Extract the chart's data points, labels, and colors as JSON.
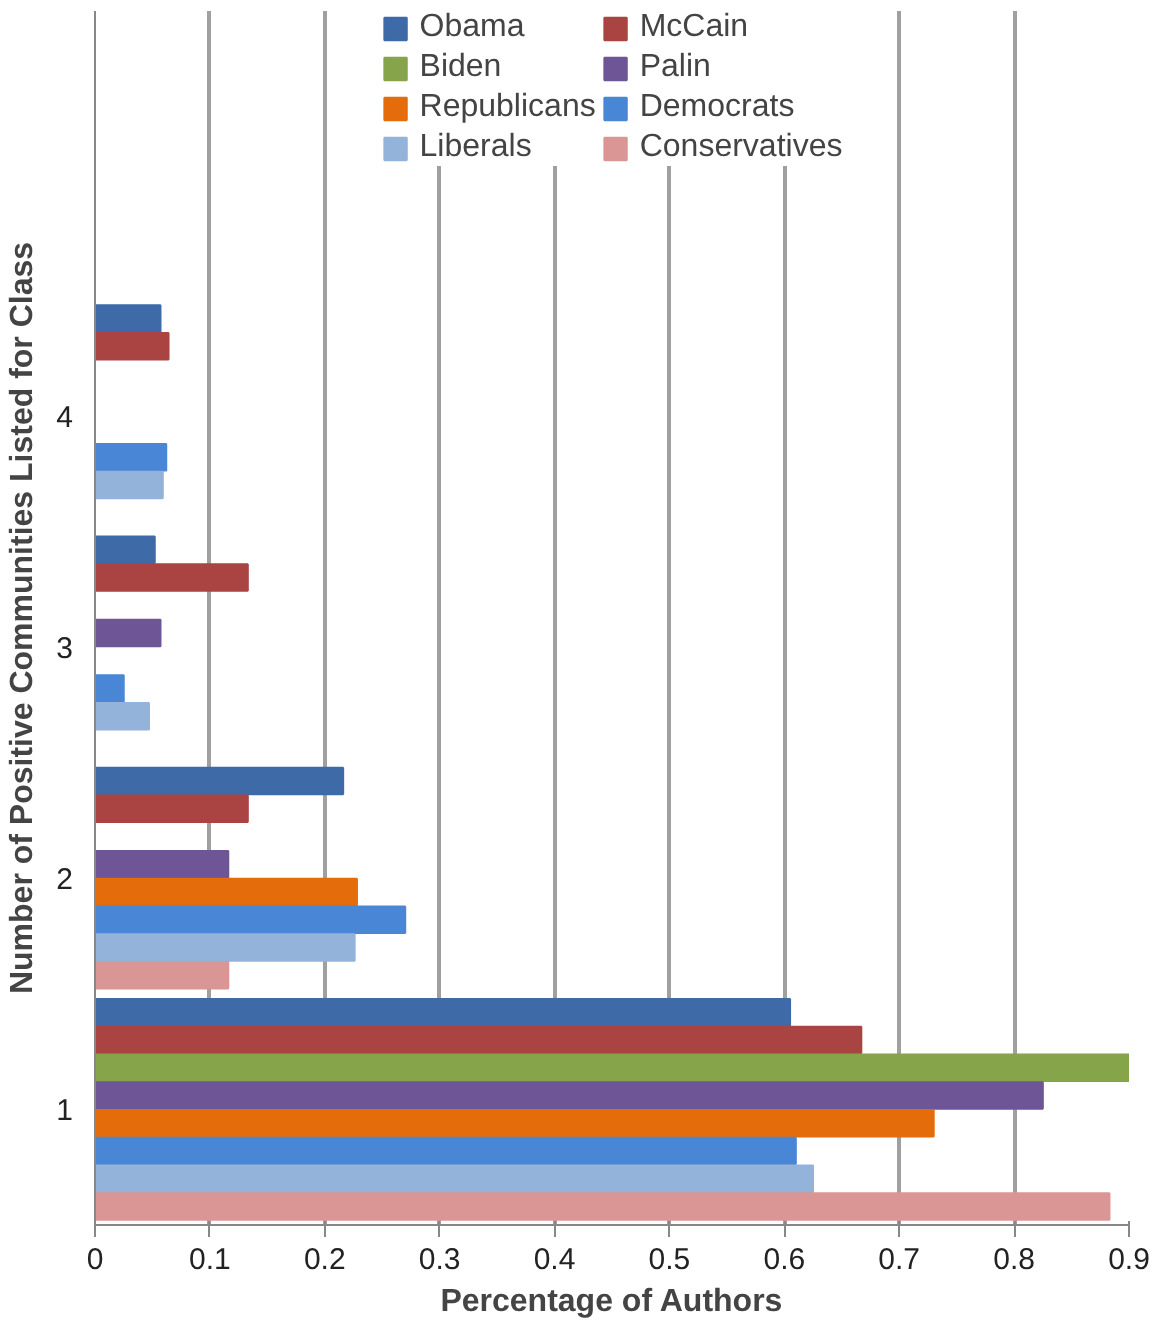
{
  "chart_data": {
    "type": "bar",
    "orientation": "horizontal",
    "xlabel": "Percentage of Authors",
    "ylabel": "Number of Positive Communities Listed for Class",
    "categories": [
      "4",
      "3",
      "2",
      "1"
    ],
    "series": [
      {
        "name": "Obama",
        "color": "#3f6aa8",
        "values": [
          0.057,
          0.052,
          0.216,
          0.605
        ]
      },
      {
        "name": "McCain",
        "color": "#a94442",
        "values": [
          0.064,
          0.133,
          0.133,
          0.667
        ]
      },
      {
        "name": "Biden",
        "color": "#86a44a",
        "values": [
          null,
          null,
          null,
          0.9
        ]
      },
      {
        "name": "Palin",
        "color": "#6e5596",
        "values": [
          null,
          0.057,
          0.116,
          0.825
        ]
      },
      {
        "name": "Republicans",
        "color": "#e46c0a",
        "values": [
          null,
          null,
          0.228,
          0.73
        ]
      },
      {
        "name": "Democrats",
        "color": "#4a86d6",
        "values": [
          0.062,
          0.025,
          0.27,
          0.61
        ]
      },
      {
        "name": "Liberals",
        "color": "#94b3da",
        "values": [
          0.059,
          0.047,
          0.226,
          0.625
        ]
      },
      {
        "name": "Conservatives",
        "color": "#da9694",
        "values": [
          null,
          null,
          0.116,
          0.883
        ]
      }
    ],
    "xlim": [
      0,
      0.9
    ],
    "xticks": [
      0,
      0.1,
      0.2,
      0.3,
      0.4,
      0.5,
      0.6,
      0.7,
      0.8,
      0.9
    ],
    "grid": "x",
    "legend": "top"
  }
}
